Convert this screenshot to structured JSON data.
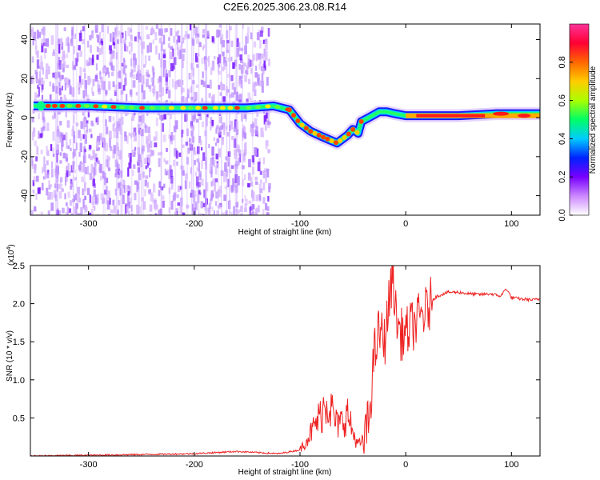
{
  "title": "C2E6.2025.306.23.08.R14",
  "chart_data": [
    {
      "type": "heatmap",
      "xlabel": "Height of straight line (km)",
      "ylabel": "Frequency (Hz)",
      "xlim": [
        -355,
        127
      ],
      "ylim": [
        -50,
        48
      ],
      "x_ticks": [
        -300,
        -200,
        -100,
        0,
        100
      ],
      "y_ticks": [
        -40,
        -20,
        0,
        20,
        40
      ],
      "colorbar": {
        "label": "Normalized spectral amplitude",
        "range": [
          0,
          1
        ],
        "ticks": [
          0.0,
          0.2,
          0.4,
          0.6,
          0.8
        ],
        "tick_labels": [
          "0.0",
          "0.2",
          "0.4",
          "0.6",
          "0.8"
        ],
        "colors": [
          "#ffffff",
          "#cc88ff",
          "#7700ff",
          "#0022ff",
          "#00ccff",
          "#00ff66",
          "#aaff00",
          "#ffcc00",
          "#ff6600",
          "#ff0033",
          "#ff3399"
        ]
      },
      "ridge": [
        {
          "x": -352,
          "y": 6
        },
        {
          "x": -300,
          "y": 6
        },
        {
          "x": -250,
          "y": 5
        },
        {
          "x": -200,
          "y": 5
        },
        {
          "x": -150,
          "y": 5
        },
        {
          "x": -125,
          "y": 6
        },
        {
          "x": -110,
          "y": 4
        },
        {
          "x": -100,
          "y": -3
        },
        {
          "x": -90,
          "y": -7
        },
        {
          "x": -78,
          "y": -10
        },
        {
          "x": -65,
          "y": -13
        },
        {
          "x": -55,
          "y": -9
        },
        {
          "x": -50,
          "y": -6
        },
        {
          "x": -45,
          "y": -8
        },
        {
          "x": -42,
          "y": -2
        },
        {
          "x": -35,
          "y": 0
        },
        {
          "x": -25,
          "y": 3
        },
        {
          "x": -18,
          "y": 3
        },
        {
          "x": -10,
          "y": 2
        },
        {
          "x": 0,
          "y": 1
        },
        {
          "x": 50,
          "y": 1
        },
        {
          "x": 85,
          "y": 2
        },
        {
          "x": 100,
          "y": 2
        },
        {
          "x": 127,
          "y": 2
        }
      ]
    },
    {
      "type": "line",
      "xlabel": "Height of straight line (km)",
      "ylabel": "SNR (10 * v/v)",
      "y_multiplier": "(x10",
      "y_multiplier_exp": "4",
      "xlim": [
        -355,
        127
      ],
      "ylim": [
        0,
        2.5
      ],
      "x_ticks": [
        -300,
        -200,
        -100,
        0,
        100
      ],
      "y_ticks": [
        0.5,
        1.0,
        1.5,
        2.0,
        2.5
      ],
      "line_color": "#ee2222",
      "series": [
        {
          "x": [
            -355,
            -300,
            -250,
            -200,
            -160,
            -120,
            -100,
            -90,
            -80,
            -75,
            -70,
            -65,
            -60,
            -55,
            -50,
            -45,
            -40,
            -35,
            -30,
            -25,
            -20,
            -15,
            -12,
            -10,
            -5,
            0,
            5,
            10,
            15,
            20,
            25,
            30,
            40,
            50,
            60,
            70,
            80,
            90,
            95,
            100,
            110,
            120,
            127
          ],
          "y": [
            0.0,
            0.01,
            0.02,
            0.03,
            0.06,
            0.03,
            0.08,
            0.3,
            0.55,
            0.75,
            0.6,
            0.4,
            0.45,
            0.55,
            0.3,
            0.15,
            0.2,
            0.45,
            1.3,
            1.65,
            1.5,
            2.1,
            2.45,
            1.9,
            1.6,
            1.6,
            1.7,
            1.75,
            1.85,
            1.9,
            2.05,
            2.1,
            2.15,
            2.15,
            2.13,
            2.12,
            2.13,
            2.1,
            2.2,
            2.08,
            2.06,
            2.05,
            2.06
          ]
        }
      ]
    }
  ]
}
